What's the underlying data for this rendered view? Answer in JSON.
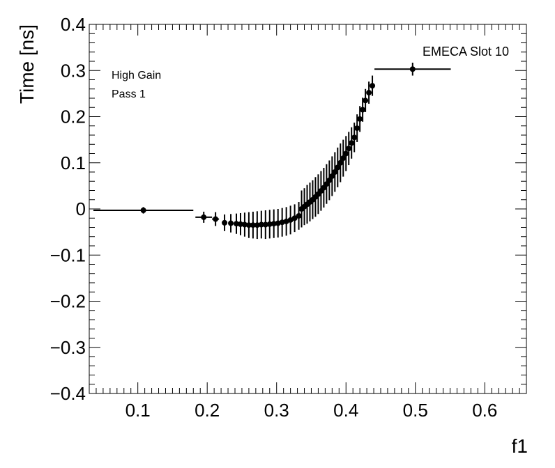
{
  "chart_data": {
    "type": "scatter",
    "xlabel": "f1",
    "ylabel": "Time [ns]",
    "xlim": [
      0.03,
      0.66
    ],
    "ylim": [
      -0.4,
      0.4
    ],
    "x_ticks": [
      0.1,
      0.2,
      0.3,
      0.4,
      0.5,
      0.6
    ],
    "x_tick_labels": [
      "0.1",
      "0.2",
      "0.3",
      "0.4",
      "0.5",
      "0.6"
    ],
    "y_ticks": [
      -0.4,
      -0.3,
      -0.2,
      -0.1,
      0,
      0.1,
      0.2,
      0.3,
      0.4
    ],
    "y_tick_labels": [
      "−0.4",
      "−0.3",
      "−0.2",
      "−0.1",
      "0",
      "0.1",
      "0.2",
      "0.3",
      "0.4"
    ],
    "grid": false,
    "annotations": [
      "High Gain",
      "Pass 1",
      "EMECA Slot 10"
    ],
    "series": [
      {
        "points": [
          {
            "x": 0.108,
            "y": -0.003,
            "ex": 0.072,
            "ey": 0.007
          },
          {
            "x": 0.195,
            "y": -0.018,
            "ex": 0.012,
            "ey": 0.012
          },
          {
            "x": 0.212,
            "y": -0.022,
            "ex": 0.005,
            "ey": 0.015
          },
          {
            "x": 0.225,
            "y": -0.03,
            "ex": 0.003,
            "ey": 0.018
          },
          {
            "x": 0.234,
            "y": -0.031,
            "ex": 0,
            "ey": 0.02
          },
          {
            "x": 0.242,
            "y": -0.032,
            "ex": 0,
            "ey": 0.022
          },
          {
            "x": 0.248,
            "y": -0.033,
            "ex": 0,
            "ey": 0.024
          },
          {
            "x": 0.254,
            "y": -0.034,
            "ex": 0,
            "ey": 0.026
          },
          {
            "x": 0.26,
            "y": -0.035,
            "ex": 0,
            "ey": 0.028
          },
          {
            "x": 0.266,
            "y": -0.035,
            "ex": 0,
            "ey": 0.029
          },
          {
            "x": 0.272,
            "y": -0.035,
            "ex": 0,
            "ey": 0.03
          },
          {
            "x": 0.278,
            "y": -0.034,
            "ex": 0,
            "ey": 0.03
          },
          {
            "x": 0.284,
            "y": -0.034,
            "ex": 0,
            "ey": 0.031
          },
          {
            "x": 0.29,
            "y": -0.033,
            "ex": 0,
            "ey": 0.031
          },
          {
            "x": 0.296,
            "y": -0.032,
            "ex": 0,
            "ey": 0.031
          },
          {
            "x": 0.302,
            "y": -0.031,
            "ex": 0,
            "ey": 0.031
          },
          {
            "x": 0.308,
            "y": -0.029,
            "ex": 0,
            "ey": 0.031
          },
          {
            "x": 0.314,
            "y": -0.027,
            "ex": 0,
            "ey": 0.031
          },
          {
            "x": 0.32,
            "y": -0.024,
            "ex": 0,
            "ey": 0.031
          },
          {
            "x": 0.326,
            "y": -0.02,
            "ex": 0,
            "ey": 0.03
          },
          {
            "x": 0.332,
            "y": -0.015,
            "ex": 0,
            "ey": 0.03
          },
          {
            "x": 0.336,
            "y": 0.0,
            "ex": 0,
            "ey": 0.04
          },
          {
            "x": 0.34,
            "y": 0.005,
            "ex": 0,
            "ey": 0.04
          },
          {
            "x": 0.344,
            "y": 0.01,
            "ex": 0,
            "ey": 0.042
          },
          {
            "x": 0.348,
            "y": 0.015,
            "ex": 0,
            "ey": 0.042
          },
          {
            "x": 0.352,
            "y": 0.02,
            "ex": 0,
            "ey": 0.042
          },
          {
            "x": 0.356,
            "y": 0.026,
            "ex": 0,
            "ey": 0.043
          },
          {
            "x": 0.36,
            "y": 0.032,
            "ex": 0,
            "ey": 0.043
          },
          {
            "x": 0.364,
            "y": 0.039,
            "ex": 0,
            "ey": 0.043
          },
          {
            "x": 0.368,
            "y": 0.046,
            "ex": 0,
            "ey": 0.043
          },
          {
            "x": 0.372,
            "y": 0.054,
            "ex": 0,
            "ey": 0.043
          },
          {
            "x": 0.376,
            "y": 0.062,
            "ex": 0,
            "ey": 0.043
          },
          {
            "x": 0.38,
            "y": 0.071,
            "ex": 0,
            "ey": 0.043
          },
          {
            "x": 0.384,
            "y": 0.08,
            "ex": 0,
            "ey": 0.043
          },
          {
            "x": 0.388,
            "y": 0.09,
            "ex": 0,
            "ey": 0.043
          },
          {
            "x": 0.392,
            "y": 0.1,
            "ex": 0,
            "ey": 0.042
          },
          {
            "x": 0.396,
            "y": 0.11,
            "ex": 0,
            "ey": 0.04
          },
          {
            "x": 0.4,
            "y": 0.12,
            "ex": 0,
            "ey": 0.038
          },
          {
            "x": 0.404,
            "y": 0.131,
            "ex": 0,
            "ey": 0.036
          },
          {
            "x": 0.408,
            "y": 0.143,
            "ex": 0,
            "ey": 0.034
          },
          {
            "x": 0.412,
            "y": 0.155,
            "ex": 0,
            "ey": 0.032
          },
          {
            "x": 0.416,
            "y": 0.175,
            "ex": 0,
            "ey": 0.03
          },
          {
            "x": 0.42,
            "y": 0.195,
            "ex": 0,
            "ey": 0.028
          },
          {
            "x": 0.424,
            "y": 0.215,
            "ex": 0,
            "ey": 0.026
          },
          {
            "x": 0.428,
            "y": 0.235,
            "ex": 0,
            "ey": 0.025
          },
          {
            "x": 0.433,
            "y": 0.252,
            "ex": 0,
            "ey": 0.024
          },
          {
            "x": 0.438,
            "y": 0.267,
            "ex": 0,
            "ey": 0.022
          },
          {
            "x": 0.496,
            "y": 0.303,
            "ex": 0.055,
            "ey": 0.014
          }
        ]
      }
    ]
  }
}
